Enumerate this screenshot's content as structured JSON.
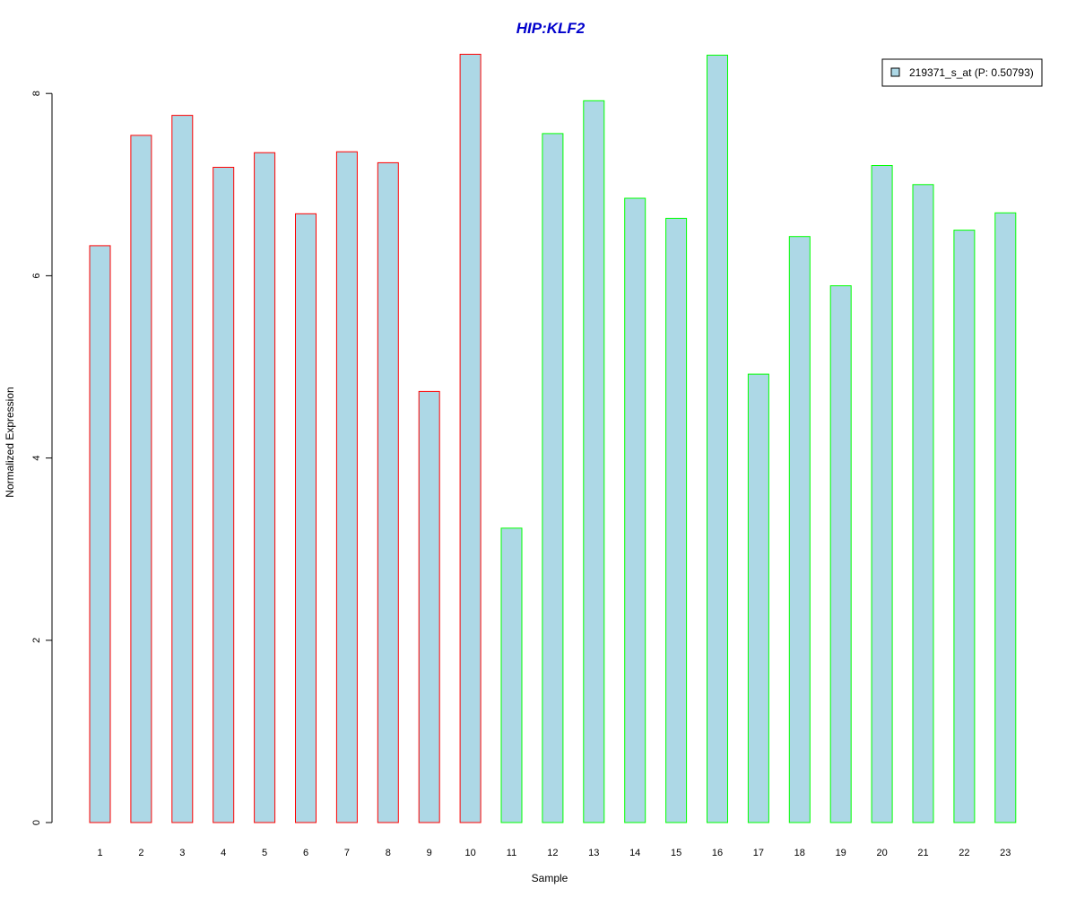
{
  "chart_data": {
    "type": "bar",
    "title": "HIP:KLF2",
    "xlabel": "Sample",
    "ylabel": "Normalized Expression",
    "categories": [
      "1",
      "2",
      "3",
      "4",
      "5",
      "6",
      "7",
      "8",
      "9",
      "10",
      "11",
      "12",
      "13",
      "14",
      "15",
      "16",
      "17",
      "18",
      "19",
      "20",
      "21",
      "22",
      "23"
    ],
    "series": [
      {
        "name": "219371_s_at (P: 0.50793)",
        "values": [
          6.33,
          7.54,
          7.76,
          7.19,
          7.35,
          6.68,
          7.36,
          7.24,
          4.73,
          8.43,
          3.23,
          7.56,
          7.92,
          6.85,
          6.63,
          8.42,
          4.92,
          6.43,
          5.89,
          7.21,
          7.0,
          6.5,
          6.69
        ],
        "fill": "#add8e6",
        "group_border_colors": [
          "#ff0000",
          "#ff0000",
          "#ff0000",
          "#ff0000",
          "#ff0000",
          "#ff0000",
          "#ff0000",
          "#ff0000",
          "#ff0000",
          "#ff0000",
          "#00ff00",
          "#00ff00",
          "#00ff00",
          "#00ff00",
          "#00ff00",
          "#00ff00",
          "#00ff00",
          "#00ff00",
          "#00ff00",
          "#00ff00",
          "#00ff00",
          "#00ff00",
          "#00ff00"
        ]
      }
    ],
    "ylim": [
      0,
      8.43
    ],
    "yticks": [
      "0",
      "2",
      "4",
      "6",
      "8"
    ],
    "ytick_values": [
      0,
      2,
      4,
      6,
      8
    ],
    "grid": false,
    "legend_position": "top-right",
    "title_color": "#0000cc"
  }
}
